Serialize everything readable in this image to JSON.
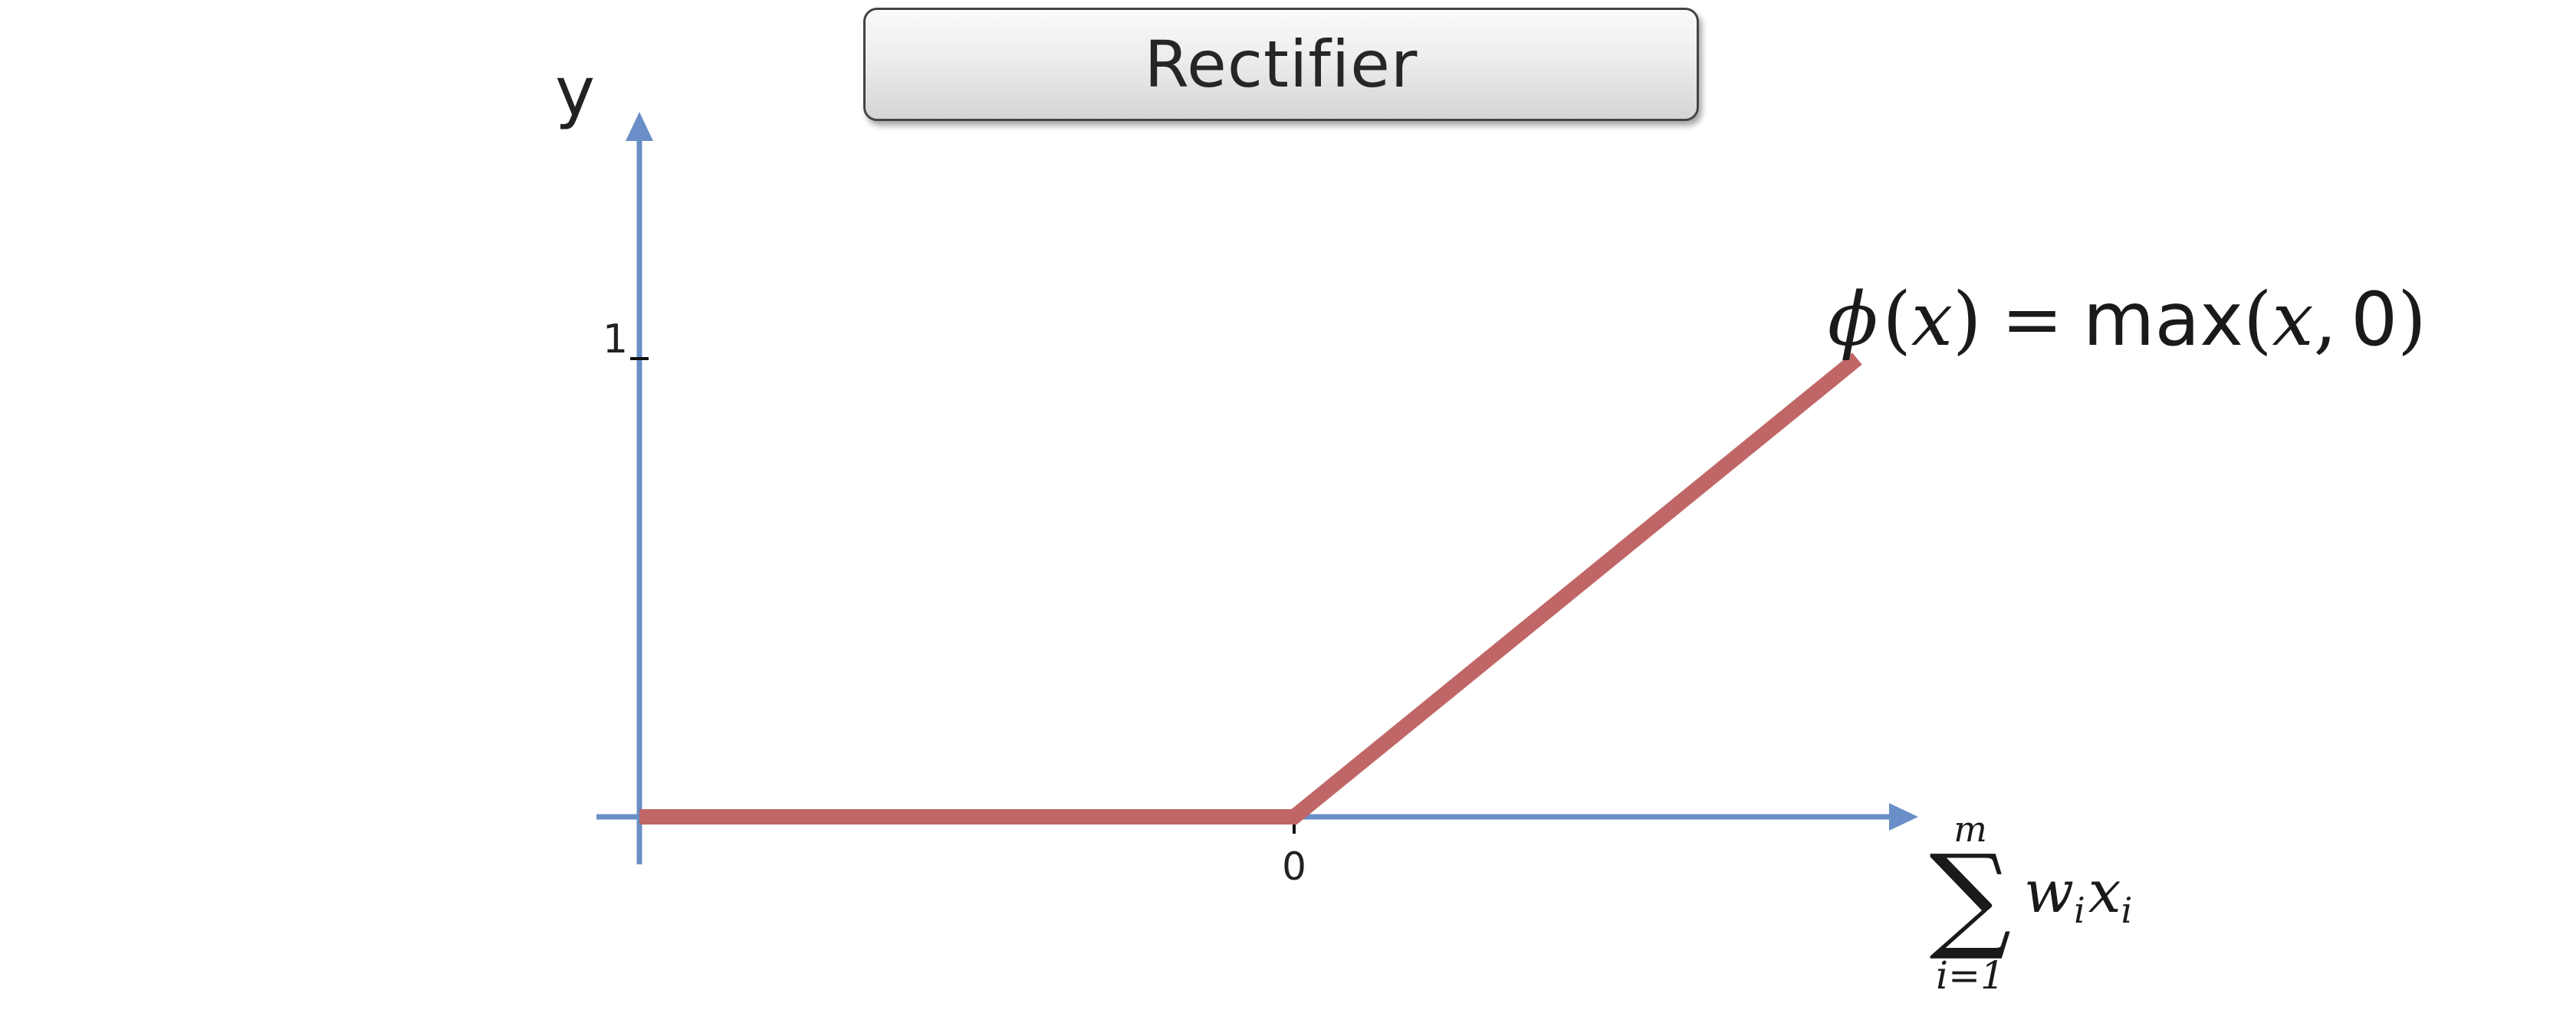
{
  "title": "Rectifier",
  "y_axis_label": "y",
  "y_tick_label": "1",
  "x_tick_label": "0",
  "formula": {
    "phi": "ϕ",
    "open": "(",
    "var": "x",
    "close": ")",
    "equals": "=",
    "func": "max",
    "args_open": "(",
    "arg_var": "x",
    "comma": ",",
    "arg_zero": "0",
    "args_close": ")"
  },
  "x_axis_label": {
    "sum_symbol": "∑",
    "upper": "m",
    "lower": "i=1",
    "w": "w",
    "w_sub": "i",
    "x": "x",
    "x_sub": "i"
  },
  "colors": {
    "axis": "#6a8fc8",
    "curve": "#c06666",
    "tick": "#111111"
  },
  "chart_data": {
    "type": "line",
    "series": [
      {
        "x": [
          -1.0,
          0.0,
          0.86
        ],
        "y": [
          0.0,
          0.0,
          1.0
        ]
      }
    ],
    "yticks": [
      1
    ],
    "xticks": [
      0
    ]
  }
}
